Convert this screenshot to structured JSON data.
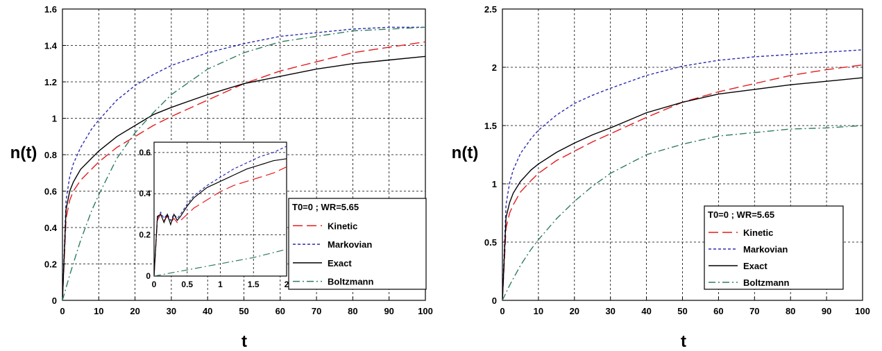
{
  "chart_data": [
    {
      "type": "line",
      "id": "left",
      "xlabel": "t",
      "ylabel": "n(t)",
      "xlim": [
        0,
        100
      ],
      "ylim": [
        0,
        1.6
      ],
      "xticks": [
        0,
        10,
        20,
        30,
        40,
        50,
        60,
        70,
        80,
        90,
        100
      ],
      "yticks": [
        0,
        0.2,
        0.4,
        0.6,
        0.8,
        1,
        1.2,
        1.4,
        1.6
      ],
      "ytick_labels": [
        "0",
        "0.2",
        "0.4",
        "0.6",
        "0.8",
        "1",
        "1.2",
        "1.4",
        "1.6"
      ],
      "grid": true,
      "legend": {
        "title": "T0=0 ; WR=5.65",
        "position": "lower-right",
        "entries": [
          "Kinetic",
          "Markovian",
          "Exact",
          "Boltzmann"
        ]
      },
      "series": [
        {
          "name": "Kinetic",
          "color": "#e41a1c",
          "dash": "long-dash",
          "x": [
            0,
            1,
            2,
            3,
            5,
            8,
            10,
            15,
            20,
            25,
            30,
            40,
            50,
            60,
            70,
            80,
            90,
            100
          ],
          "y": [
            0,
            0.45,
            0.55,
            0.6,
            0.66,
            0.72,
            0.76,
            0.84,
            0.9,
            0.96,
            1.01,
            1.1,
            1.19,
            1.26,
            1.31,
            1.36,
            1.39,
            1.42
          ]
        },
        {
          "name": "Markovian",
          "color": "#2b2bb0",
          "dash": "short-dash",
          "x": [
            0,
            1,
            2,
            3,
            5,
            8,
            10,
            15,
            20,
            25,
            30,
            40,
            50,
            60,
            70,
            80,
            90,
            100
          ],
          "y": [
            0,
            0.55,
            0.68,
            0.75,
            0.84,
            0.94,
            0.99,
            1.1,
            1.18,
            1.24,
            1.29,
            1.36,
            1.41,
            1.45,
            1.47,
            1.49,
            1.5,
            1.5
          ]
        },
        {
          "name": "Exact",
          "color": "#000000",
          "dash": "solid",
          "x": [
            0,
            1,
            2,
            3,
            5,
            8,
            10,
            15,
            20,
            25,
            30,
            40,
            50,
            60,
            70,
            80,
            90,
            100
          ],
          "y": [
            0,
            0.5,
            0.6,
            0.65,
            0.72,
            0.78,
            0.82,
            0.9,
            0.96,
            1.02,
            1.06,
            1.13,
            1.19,
            1.23,
            1.27,
            1.3,
            1.32,
            1.34
          ]
        },
        {
          "name": "Boltzmann",
          "color": "#2e7d5b",
          "dash": "dash-dot",
          "x": [
            0,
            2,
            5,
            8,
            10,
            15,
            20,
            25,
            30,
            40,
            50,
            60,
            70,
            80,
            90,
            100
          ],
          "y": [
            0,
            0.14,
            0.33,
            0.49,
            0.58,
            0.78,
            0.92,
            1.03,
            1.13,
            1.27,
            1.36,
            1.42,
            1.45,
            1.48,
            1.49,
            1.5
          ]
        }
      ],
      "inset": {
        "xlim": [
          0,
          2
        ],
        "ylim": [
          0,
          0.65
        ],
        "xticks": [
          0,
          0.5,
          1,
          1.5,
          2
        ],
        "xtick_labels": [
          "0",
          "0.5",
          "1",
          "1.5",
          "2"
        ],
        "yticks": [
          0,
          0.2,
          0.4,
          0.6
        ],
        "ytick_labels": [
          "0",
          "0.2",
          "0.4",
          "0.6"
        ],
        "series": [
          {
            "name": "Kinetic",
            "color": "#e41a1c",
            "dash": "long-dash",
            "x": [
              0,
              0.05,
              0.1,
              0.15,
              0.2,
              0.25,
              0.3,
              0.35,
              0.4,
              0.5,
              0.6,
              0.8,
              1.0,
              1.2,
              1.4,
              1.6,
              1.8,
              2.0
            ],
            "y": [
              0,
              0.27,
              0.3,
              0.27,
              0.29,
              0.26,
              0.28,
              0.26,
              0.27,
              0.3,
              0.33,
              0.37,
              0.41,
              0.44,
              0.46,
              0.48,
              0.5,
              0.53
            ]
          },
          {
            "name": "Markovian",
            "color": "#2b2bb0",
            "dash": "short-dash",
            "x": [
              0,
              0.05,
              0.1,
              0.15,
              0.2,
              0.25,
              0.3,
              0.35,
              0.4,
              0.5,
              0.6,
              0.8,
              1.0,
              1.2,
              1.4,
              1.6,
              1.8,
              2.0
            ],
            "y": [
              0,
              0.28,
              0.31,
              0.28,
              0.3,
              0.27,
              0.3,
              0.28,
              0.3,
              0.35,
              0.39,
              0.44,
              0.48,
              0.52,
              0.55,
              0.58,
              0.6,
              0.63
            ]
          },
          {
            "name": "Exact",
            "color": "#000000",
            "dash": "solid",
            "x": [
              0,
              0.05,
              0.1,
              0.15,
              0.2,
              0.25,
              0.3,
              0.35,
              0.4,
              0.5,
              0.6,
              0.8,
              1.0,
              1.2,
              1.4,
              1.6,
              1.8,
              2.0
            ],
            "y": [
              0,
              0.29,
              0.3,
              0.26,
              0.3,
              0.25,
              0.3,
              0.27,
              0.29,
              0.34,
              0.38,
              0.43,
              0.46,
              0.49,
              0.52,
              0.54,
              0.56,
              0.57
            ]
          },
          {
            "name": "Boltzmann",
            "color": "#2e7d5b",
            "dash": "dash-dot",
            "x": [
              0,
              0.5,
              1.0,
              1.5,
              2.0
            ],
            "y": [
              0,
              0.03,
              0.06,
              0.09,
              0.13
            ]
          }
        ]
      }
    },
    {
      "type": "line",
      "id": "right",
      "xlabel": "t",
      "ylabel": "n(t)",
      "xlim": [
        0,
        100
      ],
      "ylim": [
        0,
        2.5
      ],
      "xticks": [
        0,
        10,
        20,
        30,
        40,
        50,
        60,
        70,
        80,
        90,
        100
      ],
      "yticks": [
        0,
        0.5,
        1,
        1.5,
        2,
        2.5
      ],
      "ytick_labels": [
        "0",
        "0.5",
        "1",
        "1.5",
        "2",
        "2.5"
      ],
      "grid": true,
      "legend": {
        "title": "T0=0 ; WR=5.65",
        "position": "lower-right",
        "entries": [
          "Kinetic",
          "Markovian",
          "Exact",
          "Boltzmann"
        ]
      },
      "series": [
        {
          "name": "Kinetic",
          "color": "#e41a1c",
          "dash": "long-dash",
          "x": [
            0,
            1,
            2,
            3,
            5,
            8,
            10,
            15,
            20,
            25,
            30,
            40,
            50,
            60,
            70,
            80,
            90,
            100
          ],
          "y": [
            0,
            0.62,
            0.75,
            0.82,
            0.93,
            1.03,
            1.09,
            1.2,
            1.28,
            1.36,
            1.43,
            1.57,
            1.7,
            1.79,
            1.86,
            1.93,
            1.98,
            2.02
          ]
        },
        {
          "name": "Markovian",
          "color": "#2b2bb0",
          "dash": "short-dash",
          "x": [
            0,
            1,
            2,
            3,
            5,
            8,
            10,
            15,
            20,
            25,
            30,
            40,
            50,
            60,
            70,
            80,
            90,
            100
          ],
          "y": [
            0,
            0.82,
            1.01,
            1.12,
            1.26,
            1.39,
            1.46,
            1.59,
            1.69,
            1.76,
            1.82,
            1.93,
            2.01,
            2.06,
            2.09,
            2.11,
            2.13,
            2.15
          ]
        },
        {
          "name": "Exact",
          "color": "#000000",
          "dash": "solid",
          "x": [
            0,
            1,
            2,
            3,
            5,
            8,
            10,
            15,
            20,
            25,
            30,
            40,
            50,
            60,
            70,
            80,
            90,
            100
          ],
          "y": [
            0,
            0.71,
            0.84,
            0.92,
            1.02,
            1.12,
            1.17,
            1.27,
            1.35,
            1.42,
            1.48,
            1.61,
            1.7,
            1.77,
            1.81,
            1.85,
            1.88,
            1.91
          ]
        },
        {
          "name": "Boltzmann",
          "color": "#2e7d5b",
          "dash": "dash-dot",
          "x": [
            0,
            2,
            5,
            8,
            10,
            15,
            20,
            25,
            30,
            40,
            50,
            60,
            70,
            80,
            90,
            100
          ],
          "y": [
            0,
            0.13,
            0.3,
            0.44,
            0.52,
            0.7,
            0.85,
            0.98,
            1.09,
            1.25,
            1.34,
            1.41,
            1.44,
            1.47,
            1.48,
            1.5
          ]
        }
      ]
    }
  ]
}
